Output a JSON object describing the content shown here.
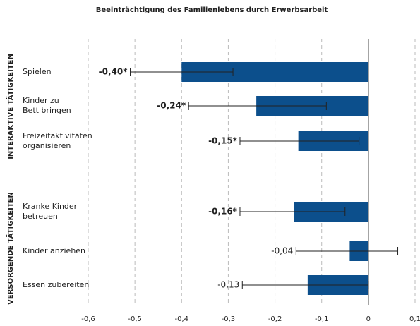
{
  "chart_data": {
    "type": "hbar",
    "title": "Beeinträchtigung des Familienlebens durch Erwerbsarbeit",
    "groups": [
      {
        "name": "INTERAKTIVE TÄTIGKEITEN",
        "members": [
          0,
          1,
          2
        ]
      },
      {
        "name": "VERSORGENDE TÄTIGKEITEN",
        "members": [
          3,
          4,
          5
        ]
      }
    ],
    "categories": [
      "Spielen",
      "Kinder zu\nBett bringen",
      "Freizeitaktivitäten\norganisieren",
      "Kranke Kinder\nbetreuen",
      "Kinder anziehen",
      "Essen zubereiten"
    ],
    "values": [
      -0.4,
      -0.24,
      -0.15,
      -0.16,
      -0.04,
      -0.13
    ],
    "value_labels": [
      "-0,40*",
      "-0,24*",
      "-0,15*",
      "-0,16*",
      "-0,04",
      "-0,13"
    ],
    "significant": [
      true,
      true,
      true,
      true,
      false,
      false
    ],
    "error_low": [
      -0.51,
      -0.385,
      -0.275,
      -0.275,
      -0.155,
      -0.27
    ],
    "error_high": [
      -0.29,
      -0.09,
      -0.02,
      -0.05,
      0.063,
      0.0
    ],
    "color": "#0c4f8c",
    "xlim": [
      -0.6,
      0.1
    ],
    "xticks": [
      {
        "value": -0.6,
        "label": "-0,6"
      },
      {
        "value": -0.5,
        "label": "-0,5"
      },
      {
        "value": -0.4,
        "label": "-0,4"
      },
      {
        "value": -0.3,
        "label": "-0,3"
      },
      {
        "value": -0.2,
        "label": "-0,2"
      },
      {
        "value": -0.1,
        "label": "-0,1"
      },
      {
        "value": 0,
        "label": "0"
      },
      {
        "value": 0.1,
        "label": "0,1"
      }
    ],
    "grid": true
  }
}
